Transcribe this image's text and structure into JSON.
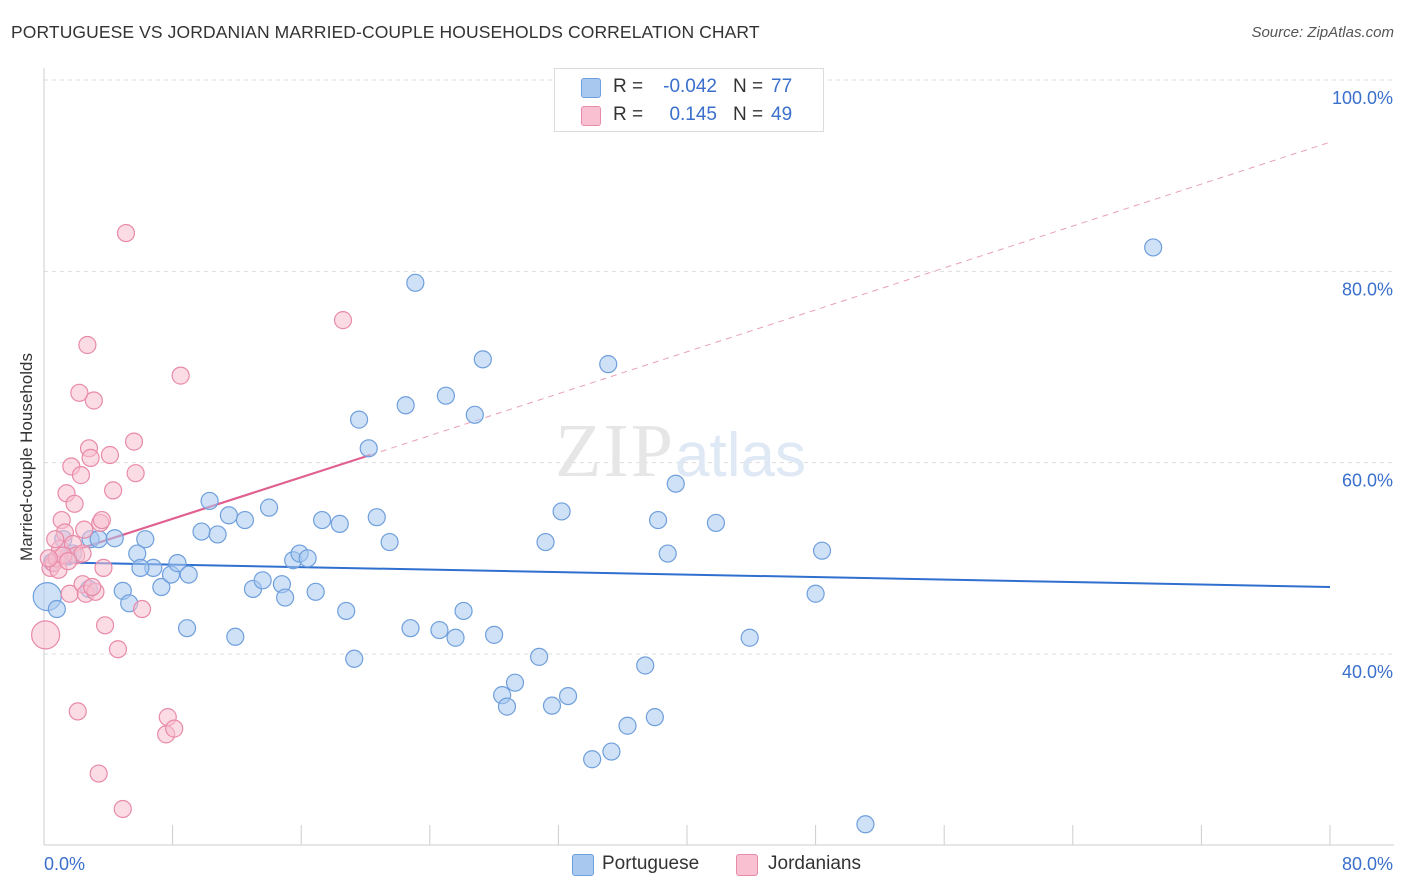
{
  "header": {
    "title": "PORTUGUESE VS JORDANIAN MARRIED-COUPLE HOUSEHOLDS CORRELATION CHART",
    "source": "Source: ZipAtlas.com"
  },
  "watermark": {
    "zip": "ZIP",
    "atlas": "atlas"
  },
  "legend_stats": [
    {
      "r_label": "R =",
      "r_value": "-0.042",
      "n_label": "N =",
      "n_value": "77",
      "color": "#a8c8f0",
      "border": "#6f9fdc"
    },
    {
      "r_label": "R =",
      "r_value": "0.145",
      "n_label": "N =",
      "n_value": "49",
      "color": "#f8c0d0",
      "border": "#e88aa8"
    }
  ],
  "legend_series": [
    {
      "label": "Portuguese",
      "color": "#a8c8f0",
      "border": "#6f9fdc"
    },
    {
      "label": "Jordanians",
      "color": "#f8c0d0",
      "border": "#e88aa8"
    }
  ],
  "chart_data": {
    "type": "scatter",
    "title": "PORTUGUESE VS JORDANIAN MARRIED-COUPLE HOUSEHOLDS CORRELATION CHART",
    "xlabel": "",
    "ylabel": "Married-couple Households",
    "xlim": [
      0,
      80
    ],
    "ylim": [
      20,
      102
    ],
    "x_tick_labels": [
      {
        "value": 0,
        "label": "0.0%"
      },
      {
        "value": 80,
        "label": "80.0%"
      }
    ],
    "y_tick_labels": [
      {
        "value": 40,
        "label": "40.0%"
      },
      {
        "value": 60,
        "label": "60.0%"
      },
      {
        "value": 80,
        "label": "80.0%"
      },
      {
        "value": 100,
        "label": "100.0%"
      }
    ],
    "grid": true,
    "series": [
      {
        "name": "Portuguese",
        "color": "#a8c8f0",
        "stroke": "#6f9fdc",
        "trend": {
          "x0": 0,
          "y0": 49.6,
          "x1": 80,
          "y1": 47.0,
          "color": "#2f6fce"
        },
        "points": [
          [
            0.2,
            46.0
          ],
          [
            0.8,
            44.7
          ],
          [
            0.5,
            49.6
          ],
          [
            1.2,
            52.0
          ],
          [
            1.8,
            50.5
          ],
          [
            2.9,
            52.0
          ],
          [
            3.4,
            52.0
          ],
          [
            2.8,
            46.8
          ],
          [
            4.4,
            52.1
          ],
          [
            4.9,
            46.6
          ],
          [
            5.3,
            45.3
          ],
          [
            5.8,
            50.5
          ],
          [
            6.3,
            52.0
          ],
          [
            6.8,
            49.0
          ],
          [
            7.3,
            47.0
          ],
          [
            7.9,
            48.3
          ],
          [
            8.3,
            49.5
          ],
          [
            8.9,
            42.7
          ],
          [
            9.0,
            48.3
          ],
          [
            9.8,
            52.8
          ],
          [
            10.3,
            56.0
          ],
          [
            10.8,
            52.5
          ],
          [
            11.5,
            54.5
          ],
          [
            11.9,
            41.8
          ],
          [
            12.5,
            54.0
          ],
          [
            13.0,
            46.8
          ],
          [
            13.6,
            47.7
          ],
          [
            14.0,
            55.3
          ],
          [
            14.8,
            47.3
          ],
          [
            15.0,
            45.9
          ],
          [
            15.5,
            49.8
          ],
          [
            15.9,
            50.5
          ],
          [
            16.4,
            50.0
          ],
          [
            16.9,
            46.5
          ],
          [
            17.3,
            54.0
          ],
          [
            18.4,
            53.6
          ],
          [
            18.8,
            44.5
          ],
          [
            19.3,
            39.5
          ],
          [
            19.6,
            64.5
          ],
          [
            20.2,
            61.5
          ],
          [
            20.7,
            54.3
          ],
          [
            21.5,
            51.7
          ],
          [
            22.5,
            66.0
          ],
          [
            22.8,
            42.7
          ],
          [
            23.1,
            78.8
          ],
          [
            24.6,
            42.5
          ],
          [
            25.0,
            67.0
          ],
          [
            25.6,
            41.7
          ],
          [
            26.1,
            44.5
          ],
          [
            26.8,
            65.0
          ],
          [
            27.3,
            70.8
          ],
          [
            28.0,
            42.0
          ],
          [
            28.5,
            35.7
          ],
          [
            28.8,
            34.5
          ],
          [
            29.3,
            37.0
          ],
          [
            30.8,
            39.7
          ],
          [
            31.2,
            51.7
          ],
          [
            31.6,
            34.6
          ],
          [
            32.2,
            54.9
          ],
          [
            32.6,
            35.6
          ],
          [
            34.1,
            29.0
          ],
          [
            35.1,
            70.3
          ],
          [
            35.3,
            29.8
          ],
          [
            36.3,
            32.5
          ],
          [
            37.4,
            38.8
          ],
          [
            38.0,
            33.4
          ],
          [
            38.2,
            54.0
          ],
          [
            38.8,
            50.5
          ],
          [
            39.3,
            57.8
          ],
          [
            41.8,
            53.7
          ],
          [
            43.9,
            41.7
          ],
          [
            48.0,
            46.3
          ],
          [
            48.4,
            50.8
          ],
          [
            51.1,
            22.2
          ],
          [
            69.0,
            82.5
          ],
          [
            1.5,
            50.2
          ],
          [
            6.0,
            49.0
          ]
        ]
      },
      {
        "name": "Jordanians",
        "color": "#f8c0d0",
        "stroke": "#e88aa8",
        "trend": {
          "x0": 0,
          "y0": 49.8,
          "x1": 20.3,
          "y1": 60.8,
          "x2": 80,
          "y2": 93.5,
          "color": "#e06090"
        },
        "points": [
          [
            0.1,
            42.0
          ],
          [
            0.4,
            49.0
          ],
          [
            0.6,
            49.5
          ],
          [
            0.8,
            50.0
          ],
          [
            1.0,
            51.0
          ],
          [
            1.1,
            54.0
          ],
          [
            1.3,
            52.7
          ],
          [
            1.4,
            56.8
          ],
          [
            1.6,
            46.3
          ],
          [
            1.7,
            59.6
          ],
          [
            1.8,
            51.5
          ],
          [
            1.9,
            55.7
          ],
          [
            2.0,
            50.3
          ],
          [
            2.1,
            34.0
          ],
          [
            2.2,
            67.3
          ],
          [
            2.3,
            58.7
          ],
          [
            2.4,
            47.3
          ],
          [
            2.5,
            53.0
          ],
          [
            2.6,
            46.3
          ],
          [
            2.7,
            72.3
          ],
          [
            2.8,
            61.5
          ],
          [
            2.9,
            60.5
          ],
          [
            3.1,
            66.5
          ],
          [
            3.2,
            46.5
          ],
          [
            3.4,
            27.5
          ],
          [
            3.5,
            53.7
          ],
          [
            3.6,
            54.0
          ],
          [
            3.7,
            49.0
          ],
          [
            3.8,
            43.0
          ],
          [
            4.1,
            60.8
          ],
          [
            4.3,
            57.1
          ],
          [
            4.6,
            40.5
          ],
          [
            4.9,
            23.8
          ],
          [
            5.1,
            84.0
          ],
          [
            5.6,
            62.2
          ],
          [
            5.7,
            58.9
          ],
          [
            6.1,
            44.7
          ],
          [
            7.6,
            31.6
          ],
          [
            7.7,
            33.4
          ],
          [
            8.1,
            32.2
          ],
          [
            8.5,
            69.1
          ],
          [
            18.6,
            74.9
          ],
          [
            0.9,
            48.8
          ],
          [
            1.2,
            50.3
          ],
          [
            0.3,
            50.0
          ],
          [
            2.4,
            50.5
          ],
          [
            0.7,
            52.0
          ],
          [
            1.5,
            49.7
          ],
          [
            3.0,
            47.0
          ]
        ]
      }
    ]
  }
}
